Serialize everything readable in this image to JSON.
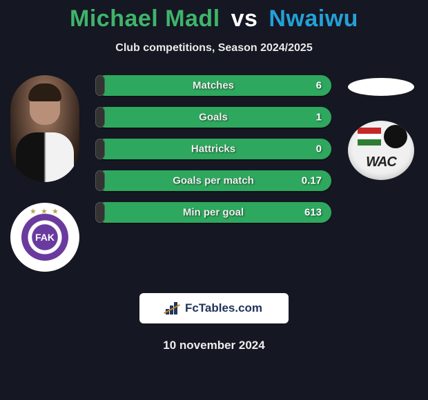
{
  "header": {
    "player1": "Michael Madl",
    "vs": "vs",
    "player2": "Nwaiwu",
    "player1_color": "#3fb36b",
    "player2_color": "#24a0d6",
    "subtitle": "Club competitions, Season 2024/2025"
  },
  "stats": [
    {
      "label": "Matches",
      "value": "6",
      "fill_pct": 4
    },
    {
      "label": "Goals",
      "value": "1",
      "fill_pct": 4
    },
    {
      "label": "Hattricks",
      "value": "0",
      "fill_pct": 4
    },
    {
      "label": "Goals per match",
      "value": "0.17",
      "fill_pct": 4
    },
    {
      "label": "Min per goal",
      "value": "613",
      "fill_pct": 4
    }
  ],
  "colors": {
    "background": "#151722",
    "pill_green": "#2ea85e",
    "pill_fill": "#333333"
  },
  "left_club": {
    "name": "FK Austria Wien",
    "initials": "FAK",
    "accent": "#6a3a9e"
  },
  "right_club": {
    "name": "WAC",
    "text": "WAC"
  },
  "footer": {
    "brand": "FcTables.com",
    "date": "10 november 2024"
  }
}
